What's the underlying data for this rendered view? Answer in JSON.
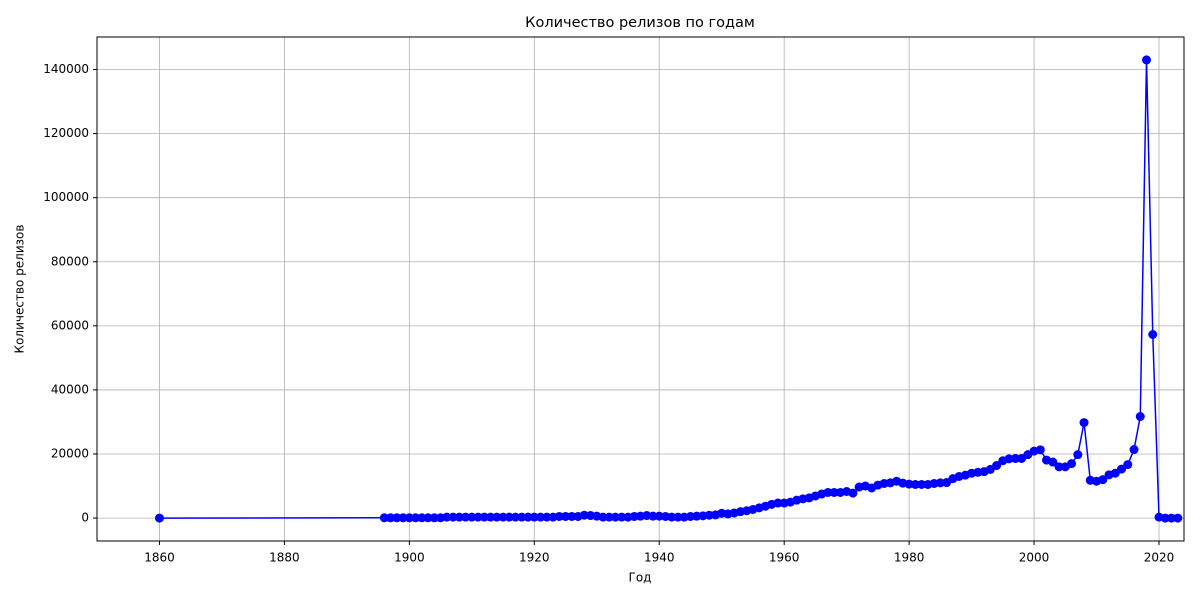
{
  "chart_data": {
    "type": "line",
    "title": "Количество релизов по годам",
    "x_label": "Год",
    "y_label": "Количество релизов",
    "x": [
      1860,
      1896,
      1897,
      1898,
      1899,
      1900,
      1901,
      1902,
      1903,
      1904,
      1905,
      1906,
      1907,
      1908,
      1909,
      1910,
      1911,
      1912,
      1913,
      1914,
      1915,
      1916,
      1917,
      1918,
      1919,
      1920,
      1921,
      1922,
      1923,
      1924,
      1925,
      1926,
      1927,
      1928,
      1929,
      1930,
      1931,
      1932,
      1933,
      1934,
      1935,
      1936,
      1937,
      1938,
      1939,
      1940,
      1941,
      1942,
      1943,
      1944,
      1945,
      1946,
      1947,
      1948,
      1949,
      1950,
      1951,
      1952,
      1953,
      1954,
      1955,
      1956,
      1957,
      1958,
      1959,
      1960,
      1961,
      1962,
      1963,
      1964,
      1965,
      1966,
      1967,
      1968,
      1969,
      1970,
      1971,
      1972,
      1973,
      1974,
      1975,
      1976,
      1977,
      1978,
      1979,
      1980,
      1981,
      1982,
      1983,
      1984,
      1985,
      1986,
      1987,
      1988,
      1989,
      1990,
      1991,
      1992,
      1993,
      1994,
      1995,
      1996,
      1997,
      1998,
      1999,
      2000,
      2001,
      2002,
      2003,
      2004,
      2005,
      2006,
      2007,
      2008,
      2009,
      2010,
      2011,
      2012,
      2013,
      2014,
      2015,
      2016,
      2017,
      2018,
      2019,
      2020,
      2021,
      2022,
      2023
    ],
    "series": [
      {
        "name": "Количество релизов",
        "color": "#0000ff",
        "values": [
          0,
          100,
          100,
          100,
          100,
          100,
          100,
          100,
          100,
          100,
          100,
          300,
          300,
          300,
          300,
          300,
          300,
          300,
          300,
          300,
          300,
          300,
          300,
          300,
          300,
          300,
          300,
          300,
          300,
          500,
          500,
          500,
          500,
          900,
          800,
          600,
          300,
          300,
          300,
          300,
          300,
          500,
          600,
          800,
          600,
          600,
          500,
          300,
          300,
          300,
          500,
          600,
          700,
          900,
          1000,
          1500,
          1300,
          1600,
          2000,
          2300,
          2700,
          3200,
          3700,
          4300,
          4700,
          4700,
          5000,
          5600,
          6000,
          6300,
          6900,
          7500,
          8000,
          8000,
          8000,
          8300,
          7800,
          9700,
          10000,
          9400,
          10300,
          10800,
          11000,
          11500,
          10900,
          10600,
          10500,
          10500,
          10500,
          10800,
          11000,
          11100,
          12300,
          13000,
          13400,
          14000,
          14300,
          14500,
          15200,
          16400,
          17900,
          18500,
          18600,
          18600,
          19800,
          20900,
          21300,
          18100,
          17500,
          16000,
          16000,
          17000,
          19800,
          29800,
          11800,
          11500,
          12000,
          13500,
          14000,
          15300,
          16700,
          21400,
          31700,
          143000,
          57300,
          300,
          0,
          0,
          0
        ]
      }
    ],
    "xlim": [
      1850,
      2024
    ],
    "xticks": [
      1860,
      1880,
      1900,
      1920,
      1940,
      1960,
      1980,
      2000,
      2020
    ],
    "ylim": [
      -7150,
      150150
    ],
    "yticks": [
      0,
      20000,
      40000,
      60000,
      80000,
      100000,
      120000,
      140000
    ],
    "grid": true
  }
}
